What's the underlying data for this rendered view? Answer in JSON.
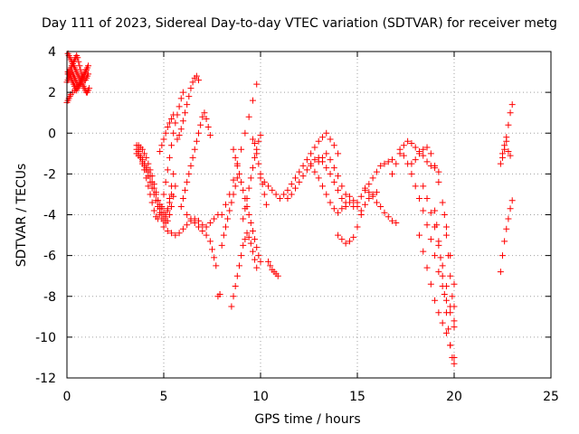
{
  "chart_data": {
    "type": "scatter",
    "title": "Day 111 of 2023, Sidereal Day-to-day VTEC variation (SDTVAR) for receiver metg",
    "xlabel": "GPS time / hours",
    "ylabel": "SDTVAR / TECUs",
    "xlim": [
      0,
      25
    ],
    "ylim": [
      -12,
      4
    ],
    "xticks": [
      "0",
      "5",
      "10",
      "15",
      "20",
      "25"
    ],
    "yticks": [
      "4",
      "2",
      "0",
      "-2",
      "-4",
      "-6",
      "-8",
      "-10",
      "-12"
    ],
    "grid": true,
    "marker": "+",
    "color": "#ff0000",
    "series": [
      {
        "name": "",
        "x": [
          0.05,
          0.1,
          0.15,
          0.2,
          0.25,
          0.3,
          0.35,
          0.4,
          0.45,
          0.5,
          0.55,
          0.6,
          0.65,
          0.7,
          0.75,
          0.8,
          0.85,
          0.9,
          0.95,
          1.0,
          1.05,
          1.1,
          1.15,
          0.05,
          0.1,
          0.15,
          0.2,
          0.25,
          0.3,
          0.35,
          0.4,
          0.45,
          0.5,
          0.55,
          0.6,
          0.65,
          0.7,
          0.75,
          0.8,
          0.85,
          0.9,
          0.95,
          1.0,
          1.05,
          1.1,
          0.0,
          0.05,
          0.1,
          0.15,
          0.2,
          0.25,
          0.3,
          0.35,
          0.4,
          0.45,
          0.5,
          0.55,
          0.6,
          0.65,
          0.7,
          0.75,
          0.8,
          0.85,
          0.9,
          0.95,
          1.0,
          1.05,
          0.05,
          0.1,
          0.15,
          0.2,
          0.25,
          0.3,
          0.35,
          0.4,
          0.45,
          0.5,
          0.55,
          0.6,
          0.65,
          0.7,
          0.75,
          0.8,
          0.85,
          0.9,
          0.95,
          1.0,
          1.05,
          1.1,
          0.0,
          0.05,
          0.1,
          0.15,
          0.2,
          0.3,
          0.4,
          0.5,
          0.6,
          0.7,
          3.6,
          3.7,
          3.8,
          3.9,
          4.0,
          4.1,
          4.2,
          4.3,
          4.4,
          4.5,
          4.6,
          4.7,
          4.8,
          4.9,
          5.0,
          5.1,
          5.2,
          5.3,
          5.4,
          5.5,
          5.6,
          5.7,
          5.8,
          5.9,
          6.0,
          3.6,
          3.7,
          3.8,
          3.9,
          4.0,
          4.1,
          4.2,
          4.3,
          4.4,
          4.5,
          4.6,
          4.7,
          4.8,
          4.9,
          5.0,
          5.1,
          5.2,
          5.3,
          5.4,
          3.6,
          3.7,
          3.8,
          3.9,
          4.0,
          4.1,
          4.2,
          4.3,
          4.4,
          4.5,
          4.6,
          4.7,
          4.8,
          4.9,
          5.0,
          5.1,
          5.2,
          5.3,
          5.4,
          5.5,
          3.7,
          3.8,
          3.9,
          4.0,
          4.1,
          4.2,
          4.3,
          4.4,
          4.5,
          4.6,
          4.7,
          4.8,
          4.9,
          5.0,
          5.1,
          5.2,
          5.3,
          5.4,
          5.5,
          5.6,
          4.8,
          4.9,
          5.0,
          5.1,
          5.2,
          5.3,
          5.4,
          5.5,
          5.0,
          5.2,
          5.4,
          5.6,
          5.8,
          6.0,
          6.2,
          6.4,
          6.6,
          6.8,
          7.0,
          7.2,
          7.4,
          7.6,
          7.8,
          5.7,
          5.8,
          5.9,
          6.0,
          6.1,
          6.2,
          6.3,
          6.4,
          6.5,
          6.6,
          6.7,
          6.8,
          5.9,
          6.0,
          6.1,
          6.2,
          6.3,
          6.4,
          6.5,
          6.6,
          6.7,
          6.8,
          6.9,
          7.0,
          7.1,
          7.2,
          7.3,
          7.4,
          6.2,
          6.4,
          6.6,
          6.8,
          7.0,
          7.2,
          7.4,
          7.5,
          7.6,
          7.7,
          7.9,
          8.0,
          8.1,
          8.2,
          8.3,
          8.4,
          8.5,
          8.6,
          8.7,
          8.8,
          8.0,
          8.2,
          8.4,
          8.6,
          8.8,
          9.0,
          9.2,
          9.4,
          9.6,
          9.8,
          8.5,
          8.6,
          8.7,
          8.8,
          8.9,
          9.0,
          9.1,
          9.2,
          9.3,
          9.4,
          9.5,
          9.6,
          9.7,
          9.8,
          8.6,
          8.7,
          8.8,
          8.9,
          9.0,
          9.1,
          9.2,
          9.3,
          9.4,
          9.5,
          9.6,
          9.7,
          9.8,
          9.9,
          10.0,
          9.1,
          9.2,
          9.3,
          9.4,
          9.5,
          9.6,
          9.7,
          9.8,
          9.9,
          10.0,
          9.6,
          9.7,
          9.8,
          9.9,
          10.0,
          10.1,
          10.2,
          10.3,
          10.4,
          10.5,
          10.6,
          10.7,
          10.8,
          10.9,
          7.8,
          7.9,
          10.0,
          10.2,
          10.4,
          10.6,
          10.8,
          11.0,
          11.2,
          11.4,
          11.6,
          11.8,
          12.0,
          12.2,
          12.4,
          12.6,
          12.8,
          13.0,
          13.2,
          13.4,
          13.6,
          13.8,
          14.0,
          11.4,
          11.6,
          11.8,
          12.0,
          12.2,
          12.4,
          12.6,
          12.8,
          13.0,
          13.2,
          13.4,
          13.6,
          13.8,
          14.0,
          14.2,
          14.4,
          12.6,
          12.8,
          13.0,
          13.2,
          13.4,
          13.6,
          13.8,
          14.0,
          14.2,
          14.4,
          14.6,
          14.8,
          15.0,
          15.2,
          15.4,
          15.6,
          15.8,
          16.0,
          13.0,
          13.2,
          13.4,
          13.6,
          13.8,
          14.0,
          14.2,
          14.4,
          14.6,
          14.8,
          15.0,
          15.2,
          15.4,
          15.6,
          15.8,
          16.0,
          16.2,
          16.4,
          16.6,
          16.8,
          14.0,
          14.2,
          14.4,
          14.6,
          14.8,
          15.0,
          15.2,
          15.4,
          15.6,
          15.8,
          16.0,
          16.2,
          16.4,
          16.6,
          16.8,
          17.0,
          16.8,
          17.0,
          17.2,
          17.4,
          17.6,
          17.8,
          18.0,
          18.2,
          18.4,
          18.6,
          18.8,
          19.0,
          19.2,
          17.2,
          17.4,
          17.6,
          17.8,
          18.0,
          18.2,
          18.4,
          18.6,
          18.8,
          19.0,
          19.2,
          19.4,
          19.6,
          19.8,
          20.0,
          17.8,
          18.0,
          18.2,
          18.4,
          18.6,
          18.8,
          19.0,
          19.2,
          19.4,
          19.6,
          19.8,
          20.0,
          18.2,
          18.4,
          18.6,
          18.8,
          19.0,
          19.2,
          19.4,
          19.6,
          19.8,
          20.0,
          18.4,
          18.6,
          18.8,
          19.0,
          19.2,
          19.4,
          19.6,
          19.8,
          20.0,
          19.0,
          19.1,
          19.2,
          19.3,
          19.4,
          19.5,
          19.6,
          19.7,
          19.8,
          19.9,
          20.0,
          19.5,
          19.6,
          19.7,
          19.8,
          19.9,
          20.0,
          22.4,
          22.5,
          22.6,
          22.7,
          22.8,
          22.9,
          23.0,
          22.4,
          22.5,
          22.6,
          22.7,
          22.8,
          22.9,
          23.0,
          22.5,
          22.6,
          22.7,
          22.8,
          22.9
        ],
        "y": [
          3.9,
          3.8,
          3.7,
          3.6,
          3.5,
          3.4,
          3.3,
          3.2,
          3.1,
          3.0,
          2.9,
          2.8,
          2.7,
          2.6,
          2.5,
          2.4,
          2.3,
          2.2,
          2.1,
          2.0,
          2.0,
          2.1,
          2.2,
          2.9,
          3.0,
          3.1,
          3.2,
          3.3,
          3.4,
          3.5,
          3.6,
          3.7,
          3.8,
          3.7,
          3.5,
          3.3,
          3.1,
          2.9,
          2.8,
          2.7,
          2.6,
          2.6,
          2.7,
          2.8,
          2.9,
          2.5,
          2.6,
          2.7,
          2.8,
          2.9,
          3.0,
          2.9,
          2.8,
          2.7,
          2.6,
          2.5,
          2.4,
          2.3,
          2.4,
          2.5,
          2.6,
          2.7,
          2.8,
          2.9,
          3.0,
          3.1,
          3.2,
          3.0,
          2.9,
          2.8,
          2.7,
          2.6,
          2.5,
          2.4,
          2.3,
          2.2,
          2.1,
          2.2,
          2.3,
          2.4,
          2.5,
          2.6,
          2.7,
          2.8,
          2.9,
          3.0,
          3.1,
          3.2,
          3.3,
          1.5,
          1.6,
          1.7,
          1.8,
          1.9,
          2.0,
          2.1,
          2.2,
          2.3,
          2.4,
          -0.6,
          -0.9,
          -1.2,
          -1.5,
          -1.8,
          -2.2,
          -2.6,
          -3.0,
          -3.4,
          -3.8,
          -4.1,
          -4.2,
          -4.0,
          -3.6,
          -3.0,
          -2.4,
          -1.8,
          -1.2,
          -0.6,
          0.0,
          0.5,
          0.9,
          1.3,
          1.7,
          2.0,
          -0.8,
          -0.9,
          -1.1,
          -1.3,
          -1.5,
          -1.7,
          -1.9,
          -2.1,
          -2.4,
          -2.7,
          -3.0,
          -3.3,
          -3.5,
          -3.7,
          -3.9,
          -4.0,
          -3.8,
          -3.4,
          -3.0,
          -1.0,
          -1.1,
          -1.2,
          -1.4,
          -1.6,
          -1.8,
          -2.1,
          -2.4,
          -2.7,
          -3.0,
          -3.3,
          -3.6,
          -3.9,
          -4.2,
          -4.3,
          -4.1,
          -3.7,
          -3.2,
          -2.6,
          -2.0,
          -0.6,
          -0.7,
          -0.8,
          -1.0,
          -1.2,
          -1.5,
          -1.8,
          -2.1,
          -2.5,
          -2.9,
          -3.3,
          -3.7,
          -4.0,
          -4.2,
          -4.4,
          -4.3,
          -4.0,
          -3.6,
          -3.1,
          -2.6,
          -0.9,
          -0.6,
          -0.3,
          0.0,
          0.3,
          0.5,
          0.7,
          0.9,
          -4.6,
          -4.8,
          -4.9,
          -5.0,
          -4.9,
          -4.7,
          -4.5,
          -4.3,
          -4.2,
          -4.3,
          -4.5,
          -4.6,
          -4.4,
          -4.2,
          -4.0,
          -0.3,
          -0.1,
          0.2,
          0.6,
          1.0,
          1.4,
          1.8,
          2.2,
          2.5,
          2.7,
          2.8,
          2.6,
          -3.6,
          -3.2,
          -2.8,
          -2.4,
          -2.0,
          -1.6,
          -1.2,
          -0.8,
          -0.4,
          0.0,
          0.4,
          0.8,
          1.0,
          0.7,
          0.3,
          -0.1,
          -4.0,
          -4.2,
          -4.4,
          -4.6,
          -4.8,
          -5.0,
          -5.3,
          -5.7,
          -6.1,
          -6.5,
          -7.9,
          -5.5,
          -5.0,
          -4.6,
          -4.2,
          -3.8,
          -3.4,
          -3.0,
          -2.6,
          -2.2,
          -4.0,
          -3.5,
          -3.0,
          -2.3,
          -1.5,
          -0.8,
          0.0,
          0.8,
          1.6,
          2.4,
          -8.5,
          -8.0,
          -7.5,
          -7.0,
          -6.5,
          -6.0,
          -5.5,
          -5.2,
          -4.9,
          -5.1,
          -5.4,
          -5.8,
          -6.2,
          -6.6,
          -0.8,
          -1.2,
          -1.6,
          -2.0,
          -2.4,
          -2.8,
          -3.2,
          -3.6,
          -4.0,
          -4.4,
          -4.8,
          -5.2,
          -5.6,
          -6.0,
          -6.3,
          -4.2,
          -3.7,
          -3.2,
          -2.7,
          -2.2,
          -1.7,
          -1.2,
          -0.8,
          -0.4,
          -0.1,
          -0.3,
          -0.5,
          -1.0,
          -1.5,
          -2.0,
          -2.5,
          -3.0,
          -3.5,
          -6.3,
          -6.5,
          -6.7,
          -6.8,
          -6.9,
          -7.0,
          -8.0,
          -7.9,
          -2.2,
          -2.4,
          -2.6,
          -2.8,
          -3.0,
          -3.2,
          -3.0,
          -2.8,
          -2.5,
          -2.2,
          -1.9,
          -1.6,
          -1.3,
          -1.0,
          -0.7,
          -0.4,
          -0.2,
          0.0,
          -0.3,
          -0.6,
          -1.0,
          -3.2,
          -3.0,
          -2.7,
          -2.4,
          -2.1,
          -1.8,
          -1.5,
          -1.3,
          -1.2,
          -1.4,
          -1.7,
          -2.0,
          -2.4,
          -2.8,
          -3.2,
          -3.6,
          -1.6,
          -1.9,
          -2.2,
          -2.6,
          -3.0,
          -3.4,
          -3.7,
          -3.9,
          -3.7,
          -3.4,
          -3.1,
          -3.3,
          -3.6,
          -3.8,
          -3.5,
          -3.2,
          -3.0,
          -2.9,
          -1.4,
          -1.2,
          -1.0,
          -1.3,
          -1.7,
          -2.1,
          -2.6,
          -3.0,
          -3.4,
          -3.6,
          -3.4,
          -3.1,
          -2.8,
          -2.5,
          -2.2,
          -1.9,
          -1.6,
          -1.5,
          -1.4,
          -1.3,
          -5.0,
          -5.2,
          -5.4,
          -5.3,
          -5.1,
          -4.6,
          -4.0,
          -2.7,
          -2.9,
          -3.1,
          -3.4,
          -3.6,
          -3.9,
          -4.1,
          -4.3,
          -4.4,
          -2.0,
          -1.5,
          -1.0,
          -0.6,
          -0.4,
          -0.5,
          -0.7,
          -0.9,
          -1.1,
          -1.4,
          -1.6,
          -1.7,
          -1.9,
          -0.8,
          -1.1,
          -1.5,
          -2.0,
          -2.6,
          -3.2,
          -3.8,
          -4.5,
          -5.2,
          -6.0,
          -6.8,
          -7.5,
          -8.2,
          -8.8,
          -9.2,
          -1.5,
          -1.3,
          -1.0,
          -0.8,
          -0.7,
          -1.0,
          -1.6,
          -2.4,
          -3.4,
          -4.6,
          -6.0,
          -7.4,
          -5.0,
          -5.8,
          -6.6,
          -7.4,
          -8.2,
          -8.8,
          -9.3,
          -9.8,
          -10.4,
          -11.0,
          -2.6,
          -3.2,
          -3.9,
          -4.6,
          -5.5,
          -6.5,
          -7.5,
          -8.5,
          -9.5,
          -3.8,
          -4.5,
          -5.3,
          -6.1,
          -7.0,
          -7.9,
          -8.8,
          -9.6,
          -10.4,
          -11.0,
          -11.3,
          -4.0,
          -5.0,
          -6.0,
          -7.0,
          -8.0,
          -8.5,
          -1.5,
          -1.0,
          -0.6,
          -0.2,
          0.4,
          1.0,
          1.4,
          -6.8,
          -6.0,
          -5.3,
          -4.7,
          -4.2,
          -3.7,
          -3.3,
          -1.2,
          -0.8,
          -0.4,
          -0.9,
          -1.1
        ]
      }
    ]
  }
}
